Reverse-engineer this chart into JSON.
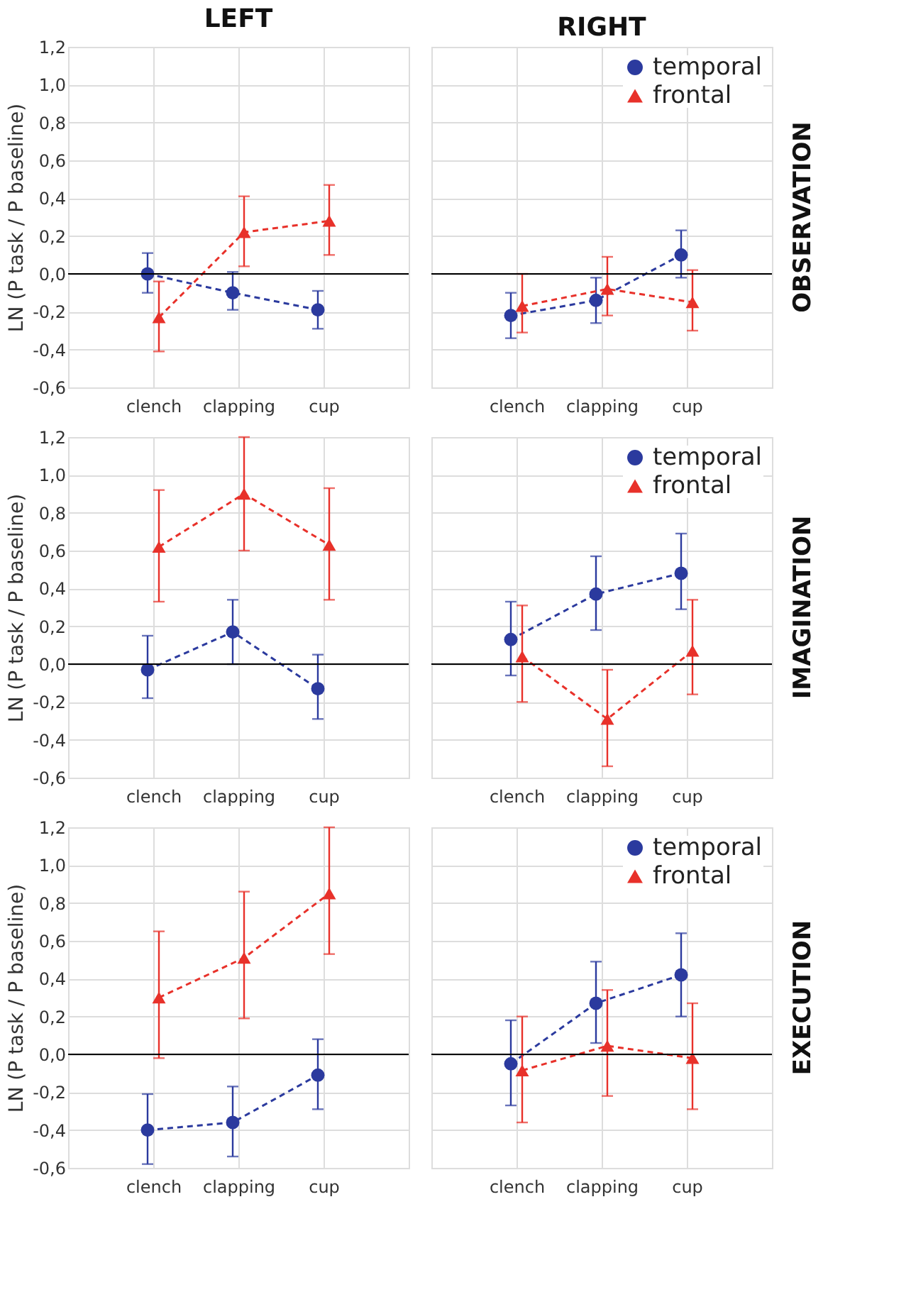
{
  "chart_data": [
    {
      "type": "line",
      "title": "LEFT",
      "ylabel": "LN (P task / P baseline)",
      "categories": [
        "clench",
        "clapping",
        "cup"
      ],
      "ylim": [
        -0.6,
        1.2
      ],
      "yticks": [
        {
          "value": -0.6,
          "label": "-0,6"
        },
        {
          "value": -0.4,
          "label": "-0,4"
        },
        {
          "value": -0.2,
          "label": "-0,2"
        },
        {
          "value": 0,
          "label": "0,0"
        },
        {
          "value": 0.2,
          "label": "0,2"
        },
        {
          "value": 0.4,
          "label": "0,4"
        },
        {
          "value": 0.6,
          "label": "0,6"
        },
        {
          "value": 0.8,
          "label": "0,8"
        },
        {
          "value": 1.0,
          "label": "1,0"
        },
        {
          "value": 1.2,
          "label": "1,2"
        }
      ],
      "grid": true,
      "line_style": "dashed",
      "ref_lines": [
        {
          "axis": "y",
          "value": 0,
          "color": "#000000"
        }
      ],
      "series": [
        {
          "color": "#2b3a9e",
          "marker": "circle",
          "values": [
            0.0,
            -0.1,
            -0.19
          ],
          "errors": [
            [
              -0.1,
              0.11
            ],
            [
              -0.19,
              0.01
            ],
            [
              -0.29,
              -0.09
            ]
          ]
        },
        {
          "color": "#e8312a",
          "marker": "triangle",
          "values": [
            -0.23,
            0.22,
            0.28
          ],
          "errors": [
            [
              -0.41,
              -0.04
            ],
            [
              0.04,
              0.41
            ],
            [
              0.1,
              0.47
            ]
          ]
        }
      ]
    },
    {
      "type": "line",
      "title": "RIGHT",
      "annotations": [
        "OBSERVATION"
      ],
      "categories": [
        "clench",
        "clapping",
        "cup"
      ],
      "ylim": [
        -0.6,
        1.2
      ],
      "yticks": [
        {
          "value": -0.6,
          "label": null
        },
        {
          "value": -0.4,
          "label": null
        },
        {
          "value": -0.2,
          "label": null
        },
        {
          "value": 0,
          "label": null
        },
        {
          "value": 0.2,
          "label": null
        },
        {
          "value": 0.4,
          "label": null
        },
        {
          "value": 0.6,
          "label": null
        },
        {
          "value": 0.8,
          "label": null
        },
        {
          "value": 1.0,
          "label": null
        },
        {
          "value": 1.2,
          "label": null
        }
      ],
      "tick_labels": "x",
      "grid": true,
      "legend": "top right",
      "line_style": "dashed",
      "ref_lines": [
        {
          "axis": "y",
          "value": 0,
          "color": "#000000"
        }
      ],
      "series": [
        {
          "name": "temporal",
          "color": "#2b3a9e",
          "marker": "circle",
          "values": [
            -0.22,
            -0.14,
            0.1
          ],
          "errors": [
            [
              -0.34,
              -0.1
            ],
            [
              -0.26,
              -0.02
            ],
            [
              -0.02,
              0.23
            ]
          ]
        },
        {
          "name": "frontal",
          "color": "#e8312a",
          "marker": "triangle",
          "values": [
            -0.17,
            -0.08,
            -0.15
          ],
          "errors": [
            [
              -0.31,
              0.0
            ],
            [
              -0.22,
              0.09
            ],
            [
              -0.3,
              0.02
            ]
          ]
        }
      ]
    },
    {
      "type": "line",
      "ylabel": "LN (P task / P baseline)",
      "categories": [
        "clench",
        "clapping",
        "cup"
      ],
      "ylim": [
        -0.6,
        1.2
      ],
      "yticks": [
        {
          "value": -0.6,
          "label": "-0,6"
        },
        {
          "value": -0.4,
          "label": "-0,4"
        },
        {
          "value": -0.2,
          "label": "-0,2"
        },
        {
          "value": 0,
          "label": "0,0"
        },
        {
          "value": 0.2,
          "label": "0,2"
        },
        {
          "value": 0.4,
          "label": "0,4"
        },
        {
          "value": 0.6,
          "label": "0,6"
        },
        {
          "value": 0.8,
          "label": "0,8"
        },
        {
          "value": 1.0,
          "label": "1,0"
        },
        {
          "value": 1.2,
          "label": "1,2"
        }
      ],
      "grid": true,
      "line_style": "dashed",
      "ref_lines": [
        {
          "axis": "y",
          "value": 0,
          "color": "#000000"
        }
      ],
      "series": [
        {
          "color": "#2b3a9e",
          "marker": "circle",
          "values": [
            -0.03,
            0.17,
            -0.13
          ],
          "errors": [
            [
              -0.18,
              0.15
            ],
            [
              0.0,
              0.34
            ],
            [
              -0.29,
              0.05
            ]
          ]
        },
        {
          "color": "#e8312a",
          "marker": "triangle",
          "values": [
            0.62,
            0.9,
            0.63
          ],
          "errors": [
            [
              0.33,
              0.92
            ],
            [
              0.6,
              1.2
            ],
            [
              0.34,
              0.93
            ]
          ]
        }
      ]
    },
    {
      "type": "line",
      "annotations": [
        "IMAGINATION"
      ],
      "categories": [
        "clench",
        "clapping",
        "cup"
      ],
      "ylim": [
        -0.6,
        1.2
      ],
      "yticks": [
        {
          "value": -0.6,
          "label": null
        },
        {
          "value": -0.4,
          "label": null
        },
        {
          "value": -0.2,
          "label": null
        },
        {
          "value": 0,
          "label": null
        },
        {
          "value": 0.2,
          "label": null
        },
        {
          "value": 0.4,
          "label": null
        },
        {
          "value": 0.6,
          "label": null
        },
        {
          "value": 0.8,
          "label": null
        },
        {
          "value": 1.0,
          "label": null
        },
        {
          "value": 1.2,
          "label": null
        }
      ],
      "tick_labels": "x",
      "grid": true,
      "legend": "top right",
      "line_style": "dashed",
      "ref_lines": [
        {
          "axis": "y",
          "value": 0,
          "color": "#000000"
        }
      ],
      "series": [
        {
          "name": "temporal",
          "color": "#2b3a9e",
          "marker": "circle",
          "values": [
            0.13,
            0.37,
            0.48
          ],
          "errors": [
            [
              -0.06,
              0.33
            ],
            [
              0.18,
              0.57
            ],
            [
              0.29,
              0.69
            ]
          ]
        },
        {
          "name": "frontal",
          "color": "#e8312a",
          "marker": "triangle",
          "values": [
            0.04,
            -0.29,
            0.07
          ],
          "errors": [
            [
              -0.2,
              0.31
            ],
            [
              -0.54,
              -0.03
            ],
            [
              -0.16,
              0.34
            ]
          ]
        }
      ]
    },
    {
      "type": "line",
      "ylabel": "LN (P task / P baseline)",
      "categories": [
        "clench",
        "clapping",
        "cup"
      ],
      "ylim": [
        -0.6,
        1.2
      ],
      "yticks": [
        {
          "value": -0.6,
          "label": "-0,6"
        },
        {
          "value": -0.4,
          "label": "-0,4"
        },
        {
          "value": -0.2,
          "label": "-0,2"
        },
        {
          "value": 0,
          "label": "0,0"
        },
        {
          "value": 0.2,
          "label": "0,2"
        },
        {
          "value": 0.4,
          "label": "0,4"
        },
        {
          "value": 0.6,
          "label": "0,6"
        },
        {
          "value": 0.8,
          "label": "0,8"
        },
        {
          "value": 1.0,
          "label": "1,0"
        },
        {
          "value": 1.2,
          "label": "1,2"
        }
      ],
      "grid": true,
      "line_style": "dashed",
      "ref_lines": [
        {
          "axis": "y",
          "value": 0,
          "color": "#000000"
        }
      ],
      "series": [
        {
          "color": "#2b3a9e",
          "marker": "circle",
          "values": [
            -0.4,
            -0.36,
            -0.11
          ],
          "errors": [
            [
              -0.58,
              -0.21
            ],
            [
              -0.54,
              -0.17
            ],
            [
              -0.29,
              0.08
            ]
          ]
        },
        {
          "color": "#e8312a",
          "marker": "triangle",
          "values": [
            0.3,
            0.51,
            0.85
          ],
          "errors": [
            [
              -0.02,
              0.65
            ],
            [
              0.19,
              0.86
            ],
            [
              0.53,
              1.2
            ]
          ]
        }
      ]
    },
    {
      "type": "line",
      "annotations": [
        "EXECUTION"
      ],
      "categories": [
        "clench",
        "clapping",
        "cup"
      ],
      "ylim": [
        -0.6,
        1.2
      ],
      "yticks": [
        {
          "value": -0.6,
          "label": null
        },
        {
          "value": -0.4,
          "label": null
        },
        {
          "value": -0.2,
          "label": null
        },
        {
          "value": 0,
          "label": null
        },
        {
          "value": 0.2,
          "label": null
        },
        {
          "value": 0.4,
          "label": null
        },
        {
          "value": 0.6,
          "label": null
        },
        {
          "value": 0.8,
          "label": null
        },
        {
          "value": 1.0,
          "label": null
        },
        {
          "value": 1.2,
          "label": null
        }
      ],
      "tick_labels": "x",
      "grid": true,
      "legend": "top right",
      "line_style": "dashed",
      "ref_lines": [
        {
          "axis": "y",
          "value": 0,
          "color": "#000000"
        }
      ],
      "series": [
        {
          "name": "temporal",
          "color": "#2b3a9e",
          "marker": "circle",
          "values": [
            -0.05,
            0.27,
            0.42
          ],
          "errors": [
            [
              -0.27,
              0.18
            ],
            [
              0.06,
              0.49
            ],
            [
              0.2,
              0.64
            ]
          ]
        },
        {
          "name": "frontal",
          "color": "#e8312a",
          "marker": "triangle",
          "values": [
            -0.085,
            0.045,
            -0.02
          ],
          "errors": [
            [
              -0.36,
              0.2
            ],
            [
              -0.22,
              0.34
            ],
            [
              -0.29,
              0.27
            ]
          ]
        }
      ]
    }
  ]
}
